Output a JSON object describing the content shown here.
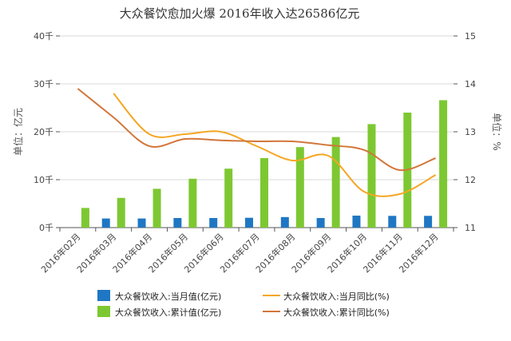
{
  "chart_data": {
    "type": "bar",
    "title": "大众餐饮愈加火爆 2016年收入达26586亿元",
    "y_left_label": "单位：亿元",
    "y_right_label": "单位：%",
    "y_left_ticks": [
      "0千",
      "10千",
      "20千",
      "30千",
      "40千"
    ],
    "y_right_ticks": [
      "11",
      "12",
      "13",
      "14",
      "15"
    ],
    "ylim_left": [
      0,
      40000
    ],
    "ylim_right": [
      11,
      15
    ],
    "categories": [
      "2016年02月",
      "2016年03月",
      "2016年04月",
      "2016年05月",
      "2016年06月",
      "2016年07月",
      "2016年08月",
      "2016年09月",
      "2016年10月",
      "2016年11月",
      "2016年12月"
    ],
    "series": [
      {
        "name": "大众餐饮收入:当月值(亿元)",
        "type": "bar",
        "axis": "left",
        "color": "#1f77c4",
        "values": [
          null,
          1900,
          1900,
          2000,
          2000,
          2050,
          2200,
          2000,
          2500,
          2450,
          2450
        ]
      },
      {
        "name": "大众餐饮收入:累计值(亿元)",
        "type": "bar",
        "axis": "left",
        "color": "#7dc832",
        "values": [
          4100,
          6200,
          8100,
          10200,
          12300,
          14500,
          16800,
          18900,
          21600,
          24000,
          26586
        ]
      },
      {
        "name": "大众餐饮收入:当月同比(%)",
        "type": "line",
        "axis": "right",
        "color": "#f5a623",
        "values": [
          null,
          13.8,
          12.95,
          12.95,
          13.0,
          12.7,
          12.4,
          12.5,
          11.75,
          11.7,
          12.1
        ]
      },
      {
        "name": "大众餐饮收入:累计同比(%)",
        "type": "line",
        "axis": "right",
        "color": "#d2763a",
        "values": [
          13.9,
          13.3,
          12.7,
          12.85,
          12.82,
          12.8,
          12.8,
          12.72,
          12.62,
          12.2,
          12.45
        ]
      }
    ],
    "legend_position": "bottom",
    "grid": true
  }
}
